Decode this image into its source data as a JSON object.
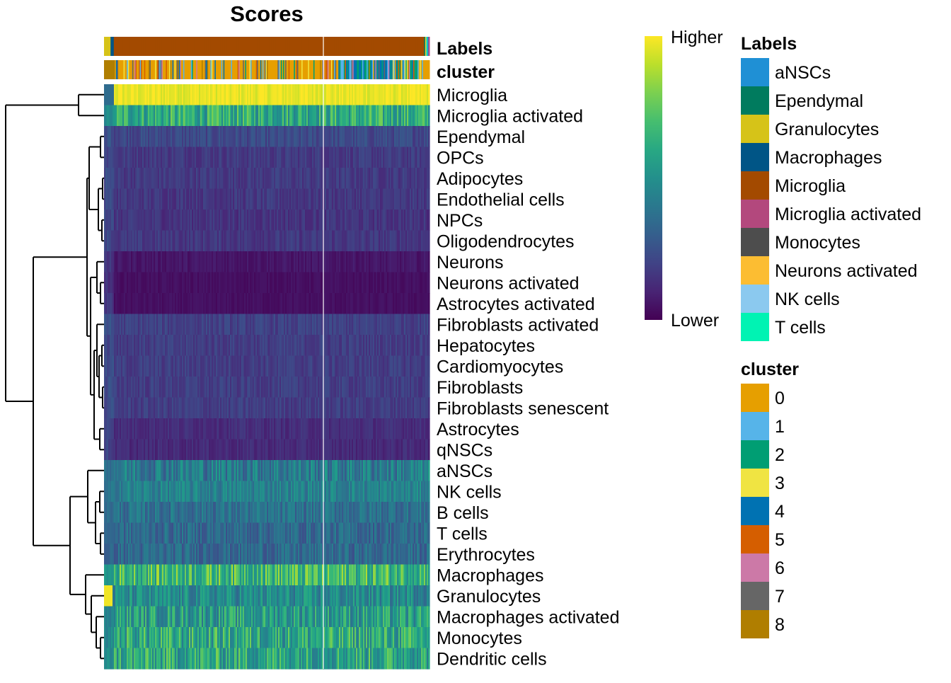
{
  "chart_data": {
    "type": "heatmap",
    "title": "Scores",
    "annotation_tracks": [
      "Labels",
      "cluster"
    ],
    "rows": [
      "Microglia",
      "Microglia activated",
      "Ependymal",
      "OPCs",
      "Adipocytes",
      "Endothelial cells",
      "NPCs",
      "Oligodendrocytes",
      "Neurons",
      "Neurons activated",
      "Astrocytes activated",
      "Fibroblasts activated",
      "Hepatocytes",
      "Cardiomyocytes",
      "Fibroblasts",
      "Fibroblasts senescent",
      "Astrocytes",
      "qNSCs",
      "aNSCs",
      "NK cells",
      "B cells",
      "T cells",
      "Erythrocytes",
      "Macrophages",
      "Granulocytes",
      "Macrophages activated",
      "Monocytes",
      "Dendritic cells"
    ],
    "row_levels": [
      0.97,
      0.62,
      0.22,
      0.17,
      0.17,
      0.16,
      0.15,
      0.16,
      0.06,
      0.04,
      0.04,
      0.19,
      0.18,
      0.18,
      0.18,
      0.18,
      0.13,
      0.12,
      0.42,
      0.44,
      0.37,
      0.34,
      0.34,
      0.68,
      0.47,
      0.55,
      0.6,
      0.6
    ],
    "row_variation": [
      0.05,
      0.18,
      0.06,
      0.05,
      0.05,
      0.05,
      0.05,
      0.05,
      0.03,
      0.02,
      0.02,
      0.05,
      0.05,
      0.05,
      0.05,
      0.05,
      0.04,
      0.04,
      0.15,
      0.1,
      0.1,
      0.1,
      0.1,
      0.2,
      0.14,
      0.18,
      0.2,
      0.2
    ],
    "color_scale": {
      "high_label": "Higher",
      "low_label": "Lower",
      "high": "#fde725",
      "mid": "#21918c",
      "low": "#440154"
    },
    "legends": [
      {
        "title": "Labels",
        "items": [
          {
            "label": "aNSCs",
            "color": "#1f90d5"
          },
          {
            "label": "Ependymal",
            "color": "#007b5e"
          },
          {
            "label": "Granulocytes",
            "color": "#d6c318"
          },
          {
            "label": "Macrophages",
            "color": "#005586"
          },
          {
            "label": "Microglia",
            "color": "#a34a00"
          },
          {
            "label": "Microglia activated",
            "color": "#b3487d"
          },
          {
            "label": "Monocytes",
            "color": "#4d4d4d"
          },
          {
            "label": "Neurons activated",
            "color": "#fcbd32"
          },
          {
            "label": "NK cells",
            "color": "#8bc9ef"
          },
          {
            "label": "T cells",
            "color": "#00f3b3"
          }
        ]
      },
      {
        "title": "cluster",
        "items": [
          {
            "label": "0",
            "color": "#e69f00"
          },
          {
            "label": "1",
            "color": "#56b4e9"
          },
          {
            "label": "2",
            "color": "#009e73"
          },
          {
            "label": "3",
            "color": "#f0e442"
          },
          {
            "label": "4",
            "color": "#0072b2"
          },
          {
            "label": "5",
            "color": "#d55e00"
          },
          {
            "label": "6",
            "color": "#cc79a7"
          },
          {
            "label": "7",
            "color": "#666666"
          },
          {
            "label": "8",
            "color": "#b07e00"
          }
        ]
      }
    ]
  }
}
